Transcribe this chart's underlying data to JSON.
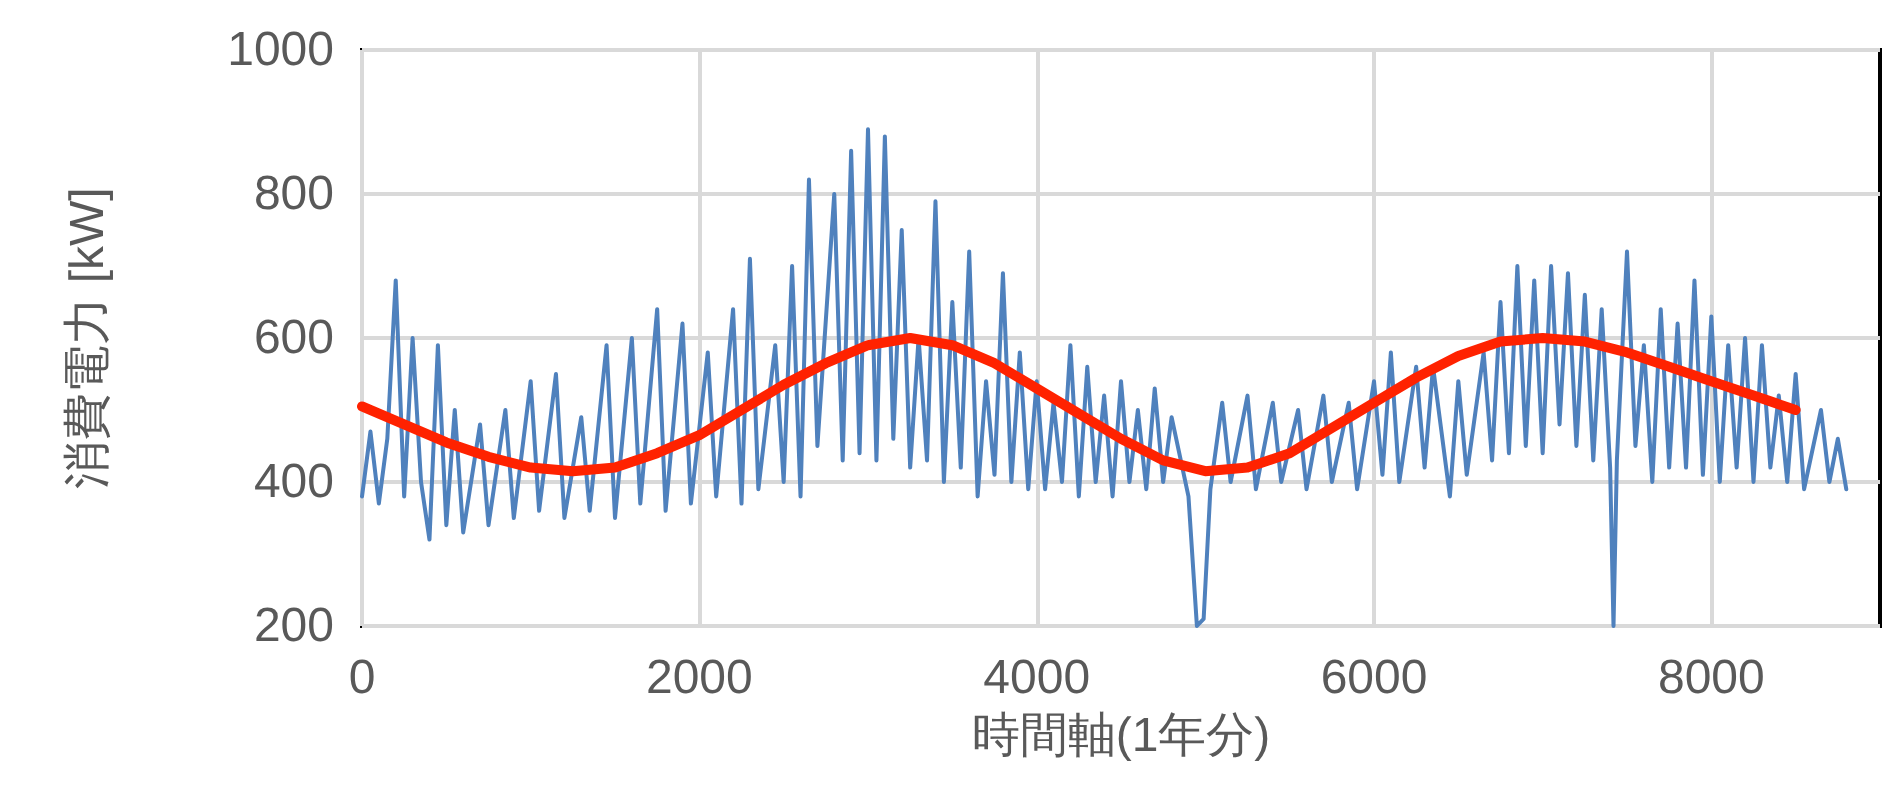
{
  "chart_data": {
    "type": "line",
    "xlabel": "時間軸(1年分)",
    "ylabel": "消費電力 [kW]",
    "xlim": [
      0,
      9000
    ],
    "xticks": [
      0,
      2000,
      4000,
      6000,
      8000
    ],
    "ylim": [
      200,
      1000
    ],
    "yticks": [
      200,
      400,
      600,
      800,
      1000
    ],
    "grid": true,
    "marker": "none",
    "series": [
      {
        "color": "#4f81bd",
        "x": [
          0,
          50,
          100,
          150,
          200,
          250,
          300,
          350,
          400,
          450,
          500,
          550,
          600,
          700,
          750,
          850,
          900,
          1000,
          1050,
          1150,
          1200,
          1300,
          1350,
          1450,
          1500,
          1600,
          1650,
          1750,
          1800,
          1900,
          1950,
          2050,
          2100,
          2200,
          2250,
          2300,
          2350,
          2450,
          2500,
          2550,
          2600,
          2650,
          2700,
          2800,
          2850,
          2900,
          2950,
          3000,
          3050,
          3100,
          3150,
          3200,
          3250,
          3300,
          3350,
          3400,
          3450,
          3500,
          3550,
          3600,
          3650,
          3700,
          3750,
          3800,
          3850,
          3900,
          3950,
          4000,
          4050,
          4100,
          4150,
          4200,
          4250,
          4300,
          4350,
          4400,
          4450,
          4500,
          4550,
          4600,
          4650,
          4700,
          4750,
          4800,
          4900,
          4950,
          4990,
          5030,
          5100,
          5150,
          5250,
          5300,
          5400,
          5450,
          5550,
          5600,
          5700,
          5750,
          5850,
          5900,
          6000,
          6050,
          6100,
          6150,
          6250,
          6300,
          6350,
          6450,
          6500,
          6550,
          6650,
          6700,
          6750,
          6800,
          6850,
          6900,
          6950,
          7000,
          7050,
          7100,
          7150,
          7200,
          7250,
          7300,
          7350,
          7400,
          7420,
          7440,
          7500,
          7550,
          7600,
          7650,
          7700,
          7750,
          7800,
          7850,
          7900,
          7950,
          8000,
          8050,
          8100,
          8150,
          8200,
          8250,
          8300,
          8350,
          8400,
          8450,
          8500,
          8550,
          8650,
          8700,
          8750,
          8800
        ],
        "values": [
          380,
          470,
          370,
          460,
          680,
          380,
          600,
          400,
          320,
          590,
          340,
          500,
          330,
          480,
          340,
          500,
          350,
          540,
          360,
          550,
          350,
          490,
          360,
          590,
          350,
          600,
          370,
          640,
          360,
          620,
          370,
          580,
          380,
          640,
          370,
          710,
          390,
          590,
          400,
          700,
          380,
          820,
          450,
          800,
          430,
          860,
          440,
          890,
          430,
          880,
          460,
          750,
          420,
          600,
          430,
          790,
          400,
          650,
          420,
          720,
          380,
          540,
          410,
          690,
          400,
          580,
          390,
          540,
          390,
          510,
          400,
          590,
          380,
          560,
          400,
          520,
          380,
          540,
          400,
          500,
          390,
          530,
          400,
          490,
          380,
          200,
          210,
          390,
          510,
          400,
          520,
          390,
          510,
          400,
          500,
          390,
          520,
          400,
          510,
          390,
          540,
          410,
          580,
          400,
          560,
          420,
          560,
          380,
          540,
          410,
          580,
          430,
          650,
          440,
          700,
          450,
          680,
          440,
          700,
          480,
          690,
          450,
          660,
          430,
          640,
          420,
          200,
          430,
          720,
          450,
          590,
          400,
          640,
          420,
          620,
          420,
          680,
          410,
          630,
          400,
          590,
          420,
          600,
          400,
          590,
          420,
          520,
          400,
          550,
          390,
          500,
          400,
          460,
          390
        ]
      },
      {
        "color": "#ff2200",
        "x": [
          0,
          250,
          500,
          750,
          1000,
          1250,
          1500,
          1750,
          2000,
          2250,
          2500,
          2750,
          3000,
          3250,
          3500,
          3750,
          4000,
          4250,
          4500,
          4750,
          5000,
          5250,
          5500,
          5750,
          6000,
          6250,
          6500,
          6750,
          7000,
          7250,
          7500,
          7750,
          8000,
          8250,
          8500
        ],
        "values": [
          505,
          480,
          455,
          435,
          420,
          415,
          420,
          440,
          465,
          500,
          535,
          565,
          590,
          600,
          590,
          565,
          530,
          495,
          460,
          430,
          415,
          420,
          440,
          475,
          510,
          545,
          575,
          595,
          600,
          595,
          580,
          560,
          540,
          520,
          500
        ]
      }
    ]
  }
}
